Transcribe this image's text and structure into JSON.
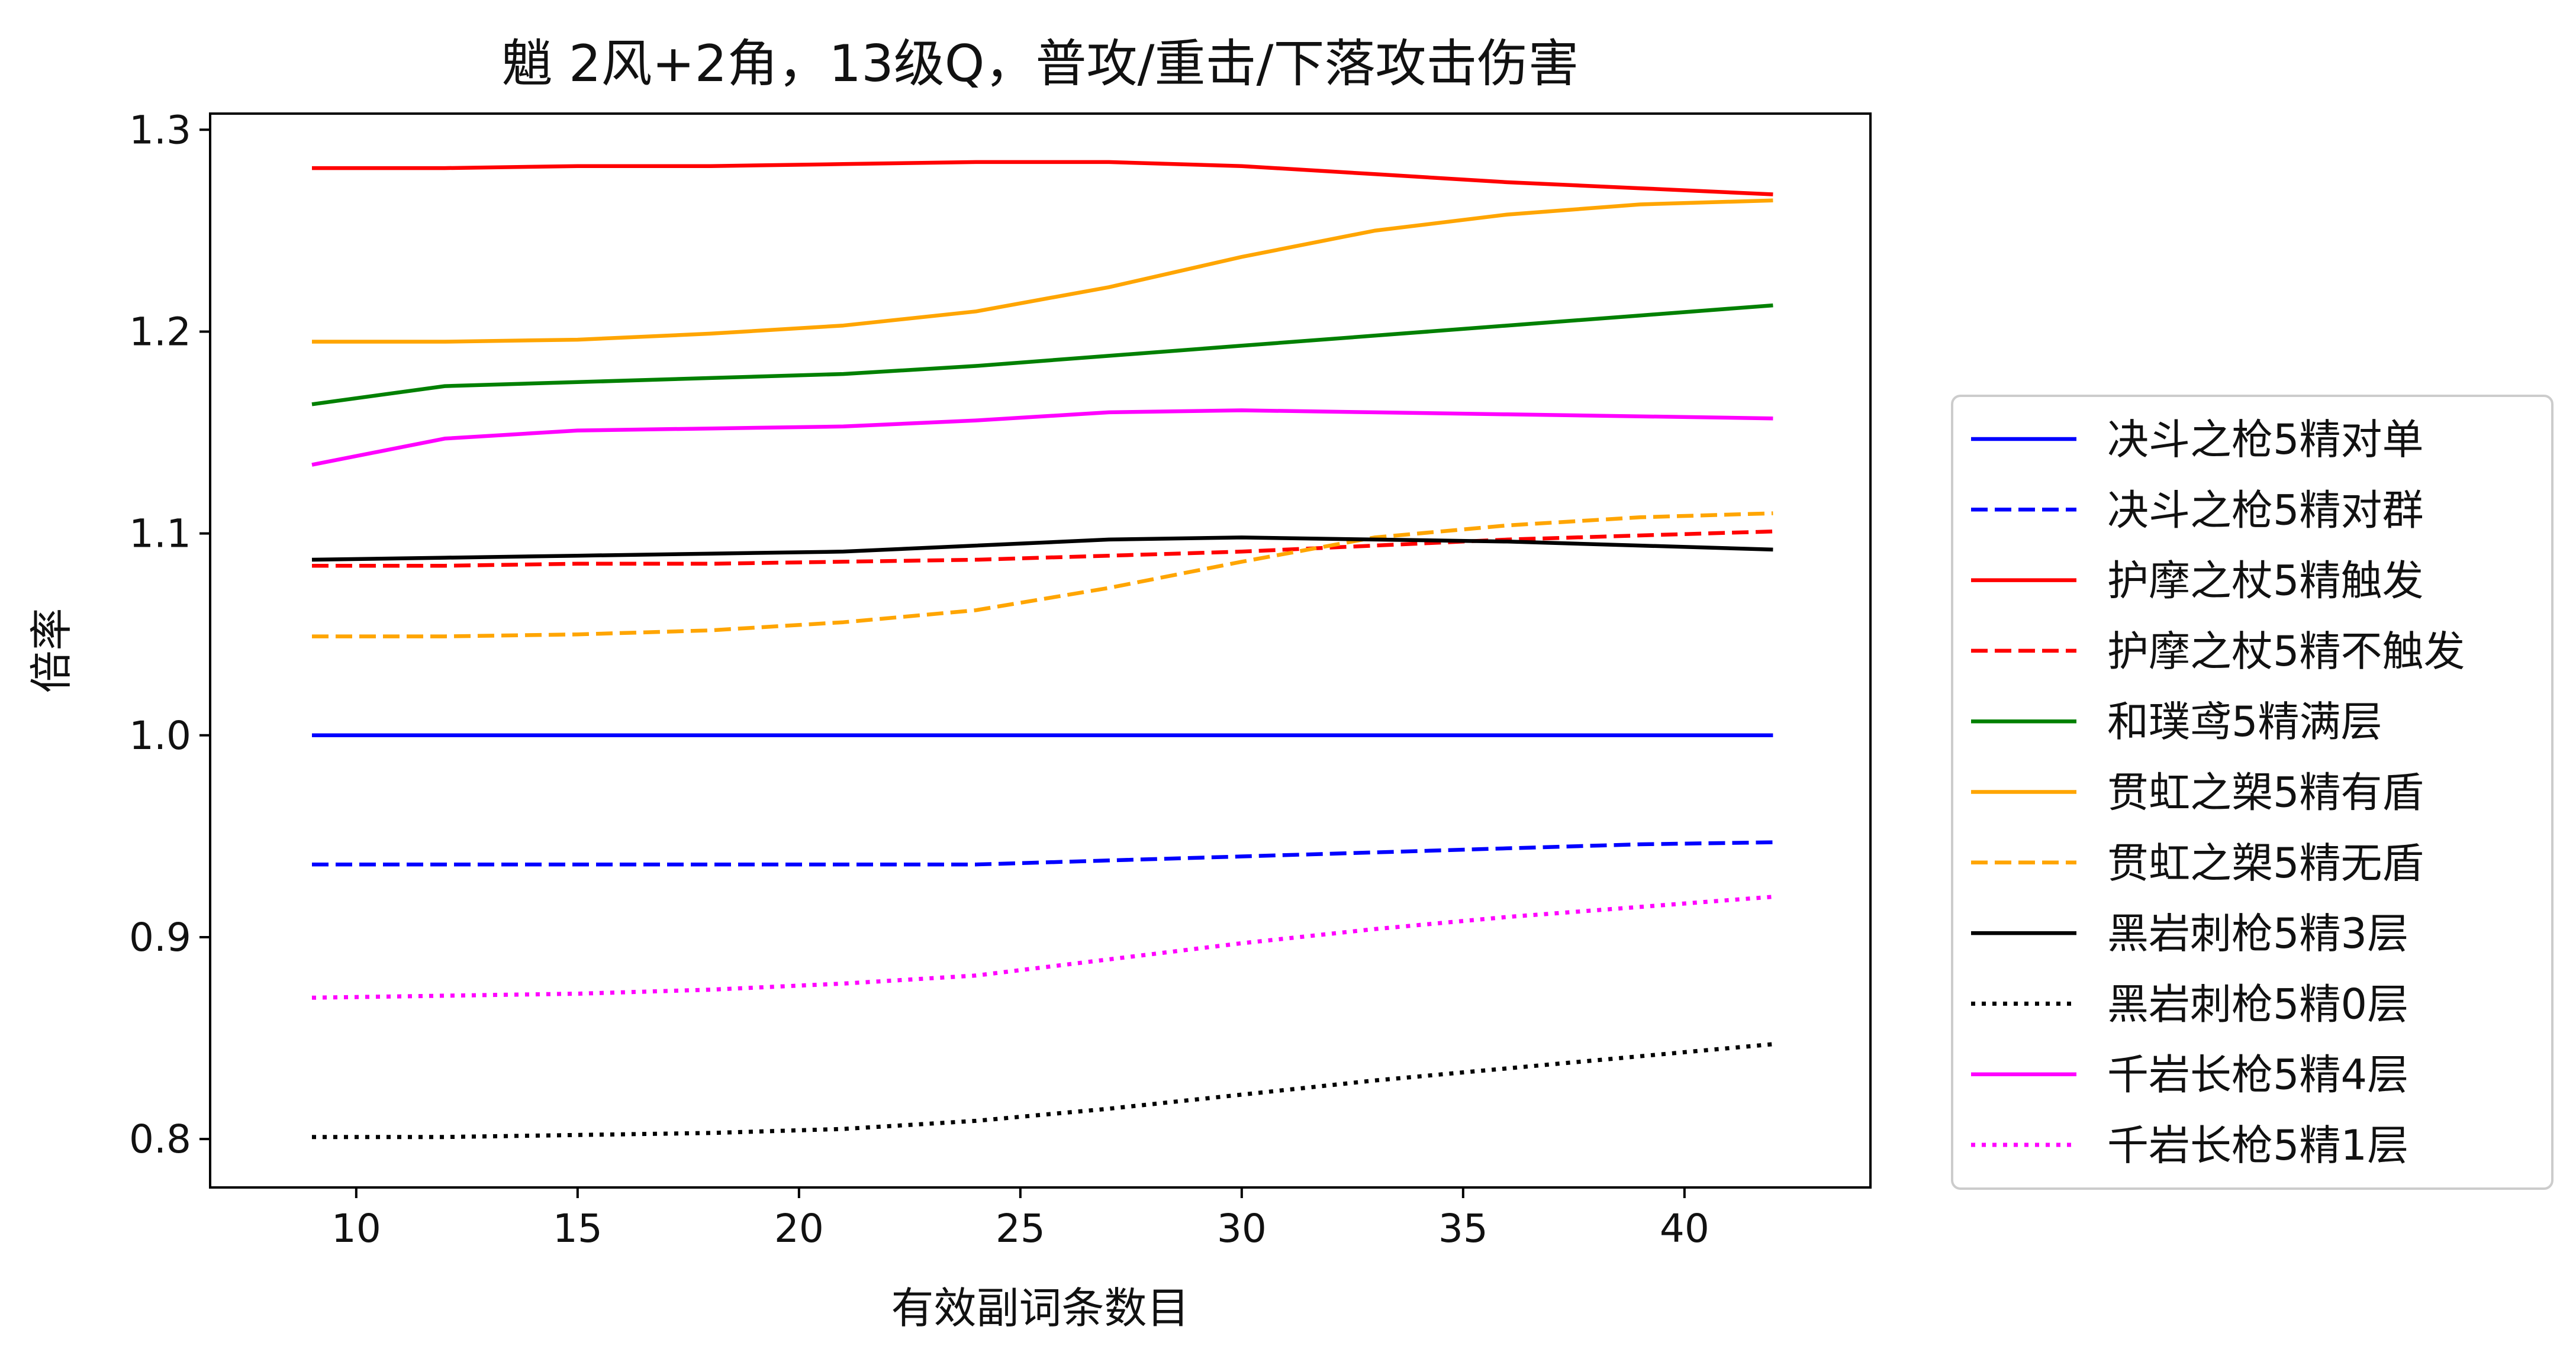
{
  "chart_data": {
    "type": "line",
    "title": "魈 2风+2角，13级Q，普攻/重击/下落攻击伤害",
    "xlabel": "有效副词条数目",
    "ylabel": "倍率",
    "xlim": [
      6.7,
      44.2
    ],
    "ylim": [
      0.776,
      1.308
    ],
    "xticks": [
      10,
      15,
      20,
      25,
      30,
      35,
      40
    ],
    "yticks": [
      0.8,
      0.9,
      1.0,
      1.1,
      1.2,
      1.3
    ],
    "ytick_labels": [
      "0.8",
      "0.9",
      "1.0",
      "1.1",
      "1.2",
      "1.3"
    ],
    "grid": false,
    "legend_position": "right, outside the plot area",
    "x": [
      9,
      12,
      15,
      18,
      21,
      24,
      27,
      30,
      33,
      36,
      39,
      42
    ],
    "series": [
      {
        "name": "决斗之枪5精对单",
        "color": "#0000ff",
        "dash": "solid",
        "values": [
          1.0,
          1.0,
          1.0,
          1.0,
          1.0,
          1.0,
          1.0,
          1.0,
          1.0,
          1.0,
          1.0,
          1.0
        ]
      },
      {
        "name": "决斗之枪5精对群",
        "color": "#0000ff",
        "dash": "dashed",
        "values": [
          0.936,
          0.936,
          0.936,
          0.936,
          0.936,
          0.936,
          0.938,
          0.94,
          0.942,
          0.944,
          0.946,
          0.947
        ]
      },
      {
        "name": "护摩之杖5精触发",
        "color": "#ff0000",
        "dash": "solid",
        "values": [
          1.281,
          1.281,
          1.282,
          1.282,
          1.283,
          1.284,
          1.284,
          1.282,
          1.278,
          1.274,
          1.271,
          1.268
        ]
      },
      {
        "name": "护摩之杖5精不触发",
        "color": "#ff0000",
        "dash": "dashed",
        "values": [
          1.084,
          1.084,
          1.085,
          1.085,
          1.086,
          1.087,
          1.089,
          1.091,
          1.094,
          1.097,
          1.099,
          1.101
        ]
      },
      {
        "name": "和璞鸢5精满层",
        "color": "#008000",
        "dash": "solid",
        "values": [
          1.164,
          1.173,
          1.175,
          1.177,
          1.179,
          1.183,
          1.188,
          1.193,
          1.198,
          1.203,
          1.208,
          1.213
        ]
      },
      {
        "name": "贯虹之槊5精有盾",
        "color": "#ffa500",
        "dash": "solid",
        "values": [
          1.195,
          1.195,
          1.196,
          1.199,
          1.203,
          1.21,
          1.222,
          1.237,
          1.25,
          1.258,
          1.263,
          1.265
        ]
      },
      {
        "name": "贯虹之槊5精无盾",
        "color": "#ffa500",
        "dash": "dashed",
        "values": [
          1.049,
          1.049,
          1.05,
          1.052,
          1.056,
          1.062,
          1.073,
          1.086,
          1.098,
          1.104,
          1.108,
          1.11
        ]
      },
      {
        "name": "黑岩刺枪5精3层",
        "color": "#000000",
        "dash": "solid",
        "values": [
          1.087,
          1.088,
          1.089,
          1.09,
          1.091,
          1.094,
          1.097,
          1.098,
          1.097,
          1.096,
          1.094,
          1.092
        ]
      },
      {
        "name": "黑岩刺枪5精0层",
        "color": "#000000",
        "dash": "dotted",
        "values": [
          0.801,
          0.801,
          0.802,
          0.803,
          0.805,
          0.809,
          0.815,
          0.822,
          0.829,
          0.835,
          0.841,
          0.847
        ]
      },
      {
        "name": "千岩长枪5精4层",
        "color": "#ff00ff",
        "dash": "solid",
        "values": [
          1.134,
          1.147,
          1.151,
          1.152,
          1.153,
          1.156,
          1.16,
          1.161,
          1.16,
          1.159,
          1.158,
          1.157
        ]
      },
      {
        "name": "千岩长枪5精1层",
        "color": "#ff00ff",
        "dash": "dotted",
        "values": [
          0.87,
          0.871,
          0.872,
          0.874,
          0.877,
          0.881,
          0.889,
          0.897,
          0.904,
          0.91,
          0.915,
          0.92
        ]
      }
    ]
  }
}
